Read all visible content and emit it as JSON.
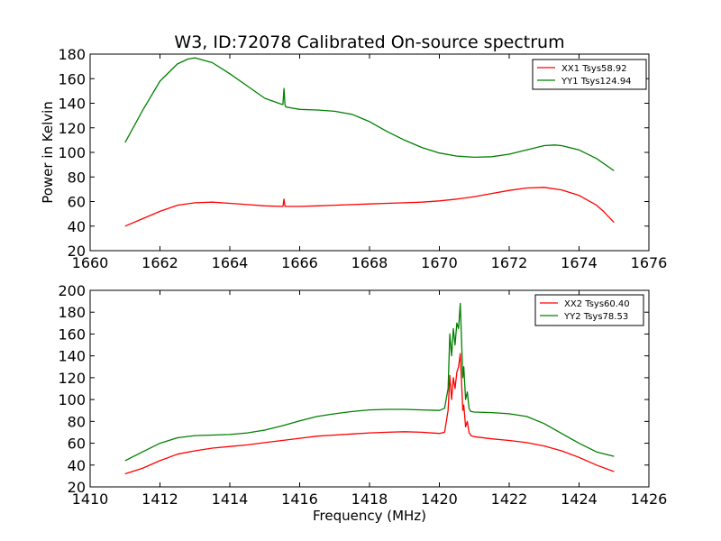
{
  "figure_title": "W3, ID:72078 Calibrated On-source spectrum",
  "chart_data": [
    {
      "type": "line",
      "title": "W3, ID:72078 Calibrated On-source spectrum",
      "xlabel": "",
      "ylabel": "Power in Kelvin",
      "xlim": [
        1660,
        1676
      ],
      "ylim": [
        20,
        180
      ],
      "xticks": [
        1660,
        1662,
        1664,
        1666,
        1668,
        1670,
        1672,
        1674,
        1676
      ],
      "yticks": [
        20,
        40,
        60,
        80,
        100,
        120,
        140,
        160,
        180
      ],
      "grid": false,
      "legend_position": "top-right",
      "series": [
        {
          "name": "XX1 Tsys58.92",
          "color": "#ff0000",
          "x": [
            1661.0,
            1661.5,
            1662.0,
            1662.5,
            1663.0,
            1663.5,
            1664.0,
            1664.5,
            1665.0,
            1665.5,
            1665.52,
            1665.55,
            1665.58,
            1665.6,
            1666.0,
            1666.5,
            1667.0,
            1667.5,
            1668.0,
            1668.5,
            1669.0,
            1669.5,
            1670.0,
            1670.5,
            1671.0,
            1671.5,
            1672.0,
            1672.5,
            1673.0,
            1673.5,
            1674.0,
            1674.5,
            1674.7,
            1675.0
          ],
          "y": [
            40,
            46,
            52,
            57,
            59,
            59.5,
            58.5,
            57.5,
            56.5,
            56,
            56,
            62,
            56,
            56,
            56,
            56.5,
            57,
            57.5,
            58,
            58.5,
            59,
            59.5,
            60.5,
            62,
            64,
            66.5,
            69,
            71,
            71.5,
            69.5,
            65,
            57,
            52,
            43
          ]
        },
        {
          "name": "YY1 Tsys124.94",
          "color": "#008000",
          "x": [
            1661.0,
            1661.5,
            1662.0,
            1662.5,
            1662.8,
            1663.0,
            1663.5,
            1664.0,
            1664.5,
            1665.0,
            1665.5,
            1665.52,
            1665.55,
            1665.58,
            1665.6,
            1666.0,
            1666.5,
            1667.0,
            1667.5,
            1668.0,
            1668.5,
            1669.0,
            1669.5,
            1670.0,
            1670.5,
            1671.0,
            1671.5,
            1672.0,
            1672.5,
            1673.0,
            1673.3,
            1673.5,
            1674.0,
            1674.5,
            1675.0
          ],
          "y": [
            108,
            134,
            158,
            172,
            176,
            177,
            173,
            164,
            154,
            144,
            139,
            139,
            152,
            139,
            137,
            135,
            134.5,
            133.5,
            131,
            125,
            117,
            110,
            104,
            99.5,
            97,
            96,
            96.5,
            98.5,
            102,
            105.5,
            106,
            105.5,
            102,
            95,
            85
          ]
        }
      ]
    },
    {
      "type": "line",
      "title": "",
      "xlabel": "Frequency (MHz)",
      "ylabel": "",
      "xlim": [
        1410,
        1426
      ],
      "ylim": [
        20,
        200
      ],
      "xticks": [
        1410,
        1412,
        1414,
        1416,
        1418,
        1420,
        1422,
        1424,
        1426
      ],
      "yticks": [
        20,
        40,
        60,
        80,
        100,
        120,
        140,
        160,
        180,
        200
      ],
      "grid": false,
      "legend_position": "top-right",
      "series": [
        {
          "name": "XX2 Tsys60.40",
          "color": "#ff0000",
          "x": [
            1411.0,
            1411.5,
            1412.0,
            1412.5,
            1413.0,
            1413.5,
            1414.0,
            1414.5,
            1415.0,
            1415.5,
            1416.0,
            1416.5,
            1417.0,
            1417.5,
            1418.0,
            1418.5,
            1419.0,
            1419.5,
            1420.0,
            1420.15,
            1420.25,
            1420.3,
            1420.35,
            1420.4,
            1420.45,
            1420.5,
            1420.55,
            1420.6,
            1420.63,
            1420.67,
            1420.7,
            1420.75,
            1420.8,
            1420.85,
            1420.9,
            1421.0,
            1421.5,
            1422.0,
            1422.5,
            1423.0,
            1423.5,
            1424.0,
            1424.5,
            1425.0
          ],
          "y": [
            32,
            37,
            44,
            50,
            53,
            55.5,
            57,
            58.5,
            60.5,
            62.5,
            64.5,
            66.5,
            67.5,
            68.5,
            69.5,
            70,
            70.5,
            70,
            69,
            70,
            90,
            122,
            100,
            120,
            110,
            125,
            130,
            142,
            120,
            90,
            95,
            75,
            80,
            70,
            67,
            66,
            64,
            62.5,
            60.5,
            57.5,
            53,
            47,
            40,
            34
          ]
        },
        {
          "name": "YY2 Tsys78.53",
          "color": "#008000",
          "x": [
            1411.0,
            1411.5,
            1412.0,
            1412.5,
            1413.0,
            1413.5,
            1414.0,
            1414.5,
            1415.0,
            1415.5,
            1416.0,
            1416.5,
            1417.0,
            1417.5,
            1418.0,
            1418.5,
            1419.0,
            1419.5,
            1420.0,
            1420.15,
            1420.25,
            1420.3,
            1420.35,
            1420.4,
            1420.45,
            1420.5,
            1420.55,
            1420.6,
            1420.63,
            1420.67,
            1420.7,
            1420.75,
            1420.8,
            1420.85,
            1420.9,
            1421.0,
            1421.5,
            1422.0,
            1422.5,
            1423.0,
            1423.5,
            1424.0,
            1424.5,
            1425.0
          ],
          "y": [
            44,
            52,
            60,
            65,
            67,
            67.5,
            68,
            69.5,
            72,
            76,
            80.5,
            84.5,
            87,
            89,
            90.5,
            91,
            91,
            90.5,
            90,
            92,
            110,
            160,
            140,
            165,
            150,
            170,
            165,
            188,
            160,
            120,
            130,
            100,
            107,
            92,
            89,
            88.5,
            88,
            87,
            84.5,
            78,
            69,
            60,
            52,
            48
          ]
        }
      ]
    }
  ]
}
